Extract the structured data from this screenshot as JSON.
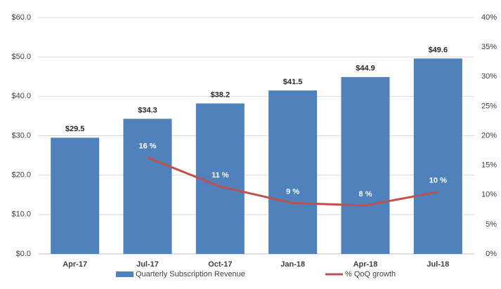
{
  "chart_data": {
    "type": "bar",
    "categories": [
      "Apr-17",
      "Jul-17",
      "Oct-17",
      "Jan-18",
      "Apr-18",
      "Jul-18"
    ],
    "series": [
      {
        "name": "Quarterly Subscription Revenue",
        "type": "bar",
        "color": "#4f81bd",
        "values": [
          29.5,
          34.3,
          38.2,
          41.5,
          44.9,
          49.6
        ],
        "value_labels": [
          "$29.5",
          "$34.3",
          "$38.2",
          "$41.5",
          "$44.9",
          "$49.6"
        ]
      },
      {
        "name": "% QoQ growth",
        "type": "line",
        "axis": "y2",
        "color": "#c0504d",
        "values": [
          null,
          16.3,
          11.4,
          8.6,
          8.2,
          10.5
        ],
        "value_labels": [
          null,
          "16 %",
          "11 %",
          "9 %",
          "8 %",
          "10 %"
        ]
      }
    ],
    "ylim": [
      0,
      60
    ],
    "yticks": [
      {
        "value": 0,
        "label": "$0.0"
      },
      {
        "value": 10,
        "label": "$10.0"
      },
      {
        "value": 20,
        "label": "$20.0"
      },
      {
        "value": 30,
        "label": "$30.0"
      },
      {
        "value": 40,
        "label": "$40.0"
      },
      {
        "value": 50,
        "label": "$50.0"
      },
      {
        "value": 60,
        "label": "$60.0"
      }
    ],
    "y2lim": [
      0,
      40
    ],
    "y2ticks": [
      {
        "value": 0,
        "label": "0%"
      },
      {
        "value": 5,
        "label": "5%"
      },
      {
        "value": 10,
        "label": "10%"
      },
      {
        "value": 15,
        "label": "15%"
      },
      {
        "value": 20,
        "label": "20%"
      },
      {
        "value": 25,
        "label": "25%"
      },
      {
        "value": 30,
        "label": "30%"
      },
      {
        "value": 35,
        "label": "35%"
      },
      {
        "value": 40,
        "label": "40%"
      }
    ],
    "grid": true,
    "legend": "bottom"
  }
}
